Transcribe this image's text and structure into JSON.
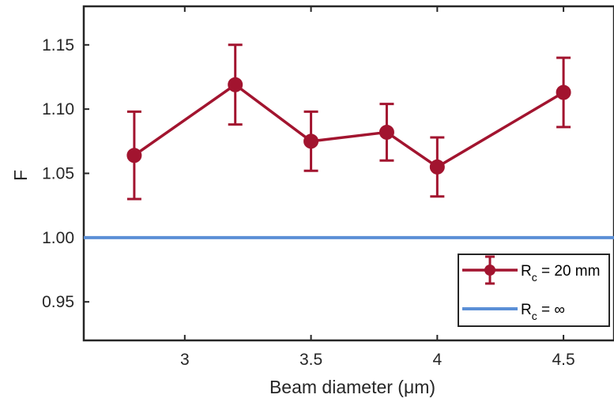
{
  "chart_data": {
    "type": "line",
    "xlabel": "Beam diameter (μm)",
    "ylabel": "F",
    "xlim": [
      2.6,
      4.7
    ],
    "ylim": [
      0.92,
      1.18
    ],
    "xticks": [
      3,
      3.5,
      4,
      4.5
    ],
    "xtick_labels": [
      "3",
      "3.5",
      "4",
      "4.5"
    ],
    "yticks": [
      0.95,
      1.0,
      1.05,
      1.1,
      1.15
    ],
    "ytick_labels": [
      "0.95",
      "1.00",
      "1.05",
      "1.10",
      "1.15"
    ],
    "grid": false,
    "legend_position": "bottom-right",
    "series": [
      {
        "name": "R_c = 20 mm",
        "label_main": "R",
        "label_sub": "c",
        "label_rest": " = 20 mm",
        "color": "#A2142F",
        "x": [
          2.8,
          3.2,
          3.5,
          3.8,
          4.0,
          4.5
        ],
        "y": [
          1.064,
          1.119,
          1.075,
          1.082,
          1.055,
          1.113
        ],
        "err_low": [
          0.034,
          0.031,
          0.023,
          0.022,
          0.023,
          0.027
        ],
        "err_high": [
          0.034,
          0.031,
          0.023,
          0.022,
          0.023,
          0.027
        ]
      },
      {
        "name": "R_c = ∞",
        "label_main": "R",
        "label_sub": "c",
        "label_rest": " = ∞",
        "color": "#5B8FD6",
        "type": "hline",
        "y": 1.0
      }
    ]
  }
}
